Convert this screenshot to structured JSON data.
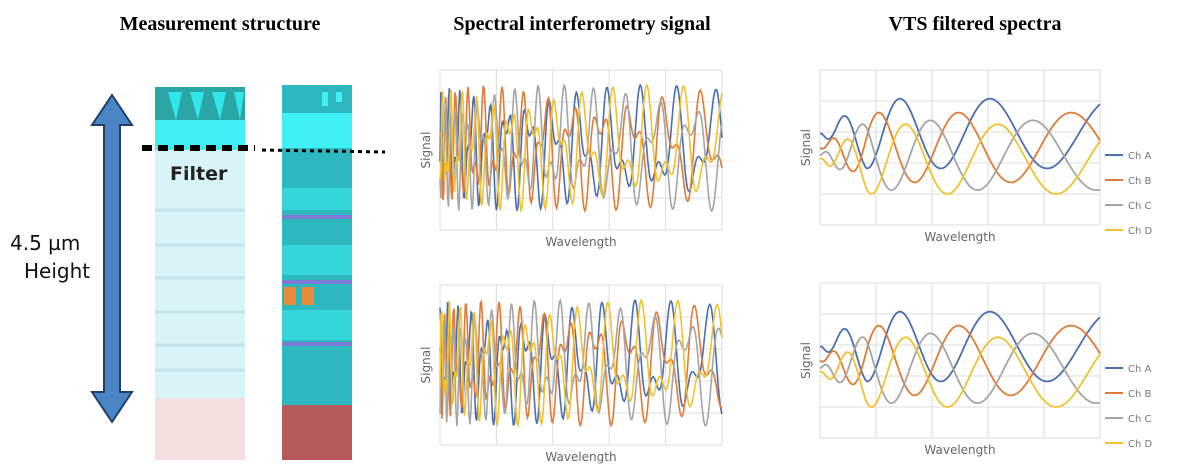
{
  "headings": [
    "Measurement structure",
    "Spectral interferometry signal",
    "VTS filtered spectra"
  ],
  "structure": {
    "height_label": [
      "4.5 µm",
      "Height"
    ],
    "filter_label": "Filter"
  },
  "signal_plots": [
    {
      "y_label": "Signal",
      "x_label": "Wavelength"
    },
    {
      "y_label": "Signal",
      "x_label": "Wavelength"
    }
  ],
  "filtered_plots": [
    {
      "y_label": "Signal",
      "x_label": "Wavelength",
      "legend": [
        {
          "name": "Ch A",
          "color": "#4a6fb0"
        },
        {
          "name": "Ch B",
          "color": "#e07b39"
        },
        {
          "name": "Ch C",
          "color": "#a5a5a5"
        },
        {
          "name": "Ch D",
          "color": "#f2c12e"
        }
      ]
    },
    {
      "y_label": "Signal",
      "x_label": "Wavelength",
      "legend": [
        {
          "name": "Ch A",
          "color": "#4a6fb0"
        },
        {
          "name": "Ch B",
          "color": "#e07b39"
        },
        {
          "name": "Ch C",
          "color": "#a5a5a5"
        },
        {
          "name": "Ch D",
          "color": "#f2c12e"
        }
      ]
    }
  ]
}
